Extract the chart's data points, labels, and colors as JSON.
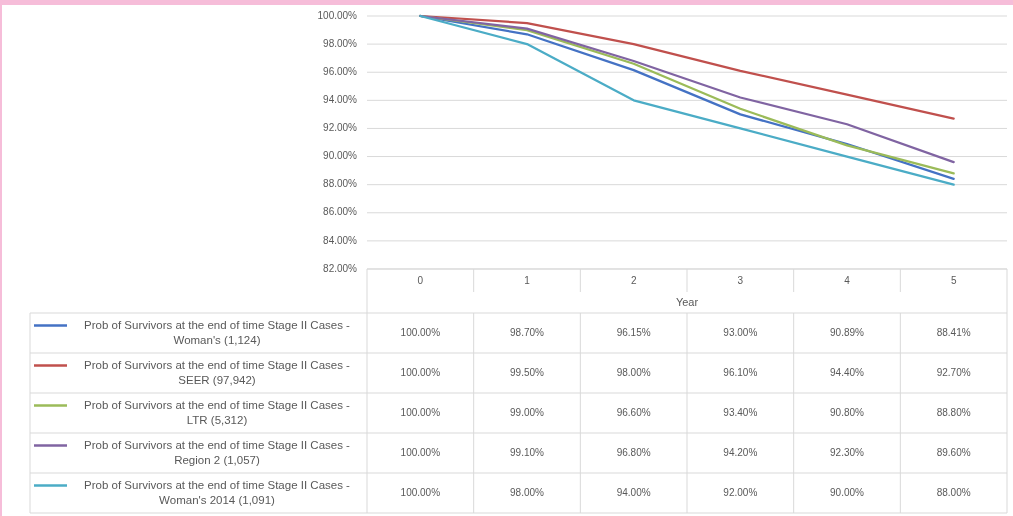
{
  "chart_data": {
    "type": "line",
    "xlabel": "Year",
    "categories": [
      "0",
      "1",
      "2",
      "3",
      "4",
      "5"
    ],
    "ylim": [
      82,
      100
    ],
    "yticks": [
      {
        "value": 82,
        "label": "82.00%"
      },
      {
        "value": 84,
        "label": "84.00%"
      },
      {
        "value": 86,
        "label": "86.00%"
      },
      {
        "value": 88,
        "label": "88.00%"
      },
      {
        "value": 90,
        "label": "90.00%"
      },
      {
        "value": 92,
        "label": "92.00%"
      },
      {
        "value": 94,
        "label": "94.00%"
      },
      {
        "value": 96,
        "label": "96.00%"
      },
      {
        "value": 98,
        "label": "98.00%"
      },
      {
        "value": 100,
        "label": "100.00%"
      }
    ],
    "grid": "y",
    "legend": "bottom",
    "series": [
      {
        "name": "Prob of Survivors at the end of time Stage II Cases - Woman's (1,124)",
        "color": "#4472c4",
        "values": [
          100,
          98.7,
          96.15,
          93,
          90.89,
          88.41
        ],
        "value_labels": [
          "100.00%",
          "98.70%",
          "96.15%",
          "93.00%",
          "90.89%",
          "88.41%"
        ]
      },
      {
        "name": "Prob of Survivors at the end of time Stage II Cases - SEER (97,942)",
        "color": "#c0504d",
        "values": [
          100,
          99.5,
          98,
          96.1,
          94.4,
          92.7
        ],
        "value_labels": [
          "100.00%",
          "99.50%",
          "98.00%",
          "96.10%",
          "94.40%",
          "92.70%"
        ]
      },
      {
        "name": "Prob of Survivors at the end of time Stage II Cases - LTR (5,312)",
        "color": "#9bbb59",
        "values": [
          100,
          99,
          96.6,
          93.4,
          90.8,
          88.8
        ],
        "value_labels": [
          "100.00%",
          "99.00%",
          "96.60%",
          "93.40%",
          "90.80%",
          "88.80%"
        ]
      },
      {
        "name": "Prob of Survivors at the end of time Stage II Cases - Region 2 (1,057)",
        "color": "#8064a2",
        "values": [
          100,
          99.1,
          96.8,
          94.2,
          92.3,
          89.6
        ],
        "value_labels": [
          "100.00%",
          "99.10%",
          "96.80%",
          "94.20%",
          "92.30%",
          "89.60%"
        ]
      },
      {
        "name": "Prob of Survivors at the end of time Stage II Cases - Woman's 2014 (1,091)",
        "color": "#4bacc6",
        "values": [
          100,
          98,
          94,
          92,
          90,
          88
        ],
        "value_labels": [
          "100.00%",
          "98.00%",
          "94.00%",
          "92.00%",
          "90.00%",
          "88.00%"
        ]
      }
    ]
  }
}
